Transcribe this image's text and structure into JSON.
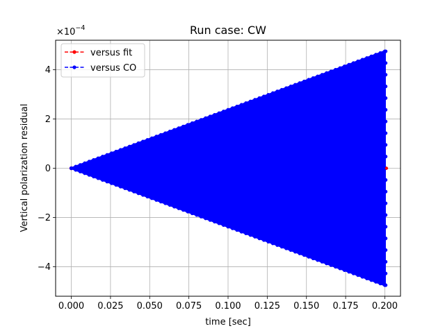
{
  "chart_data": {
    "type": "line",
    "title": "Run case: CW",
    "xlabel": "time [sec]",
    "ylabel": "Vertical polarization residual",
    "y_offset_label": "×10",
    "y_offset_exponent": "−4",
    "xlim": [
      -0.01,
      0.21
    ],
    "ylim": [
      -0.00052,
      0.00052
    ],
    "x_ticks": [
      0.0,
      0.025,
      0.05,
      0.075,
      0.1,
      0.125,
      0.15,
      0.175,
      0.2
    ],
    "x_tick_labels": [
      "0.000",
      "0.025",
      "0.050",
      "0.075",
      "0.100",
      "0.125",
      "0.150",
      "0.175",
      "0.200"
    ],
    "y_ticks": [
      -0.0004,
      -0.0002,
      0,
      0.0002,
      0.0004
    ],
    "y_tick_labels": [
      "−4",
      "−2",
      "0",
      "2",
      "4"
    ],
    "grid": true,
    "legend_position": "top-left",
    "series": [
      {
        "name": "versus fit",
        "color": "#ff0000",
        "style": "dashed-dot-marker",
        "x": [
          0.0,
          0.2
        ],
        "y": [
          0.0,
          0.0
        ]
      },
      {
        "name": "versus CO",
        "color": "#0000ff",
        "style": "dashed-dot-marker",
        "envelope": true,
        "x": [
          0.0,
          0.2
        ],
        "y_upper": [
          0.0,
          0.000475
        ],
        "y_lower": [
          0.0,
          -0.000475
        ]
      }
    ]
  }
}
